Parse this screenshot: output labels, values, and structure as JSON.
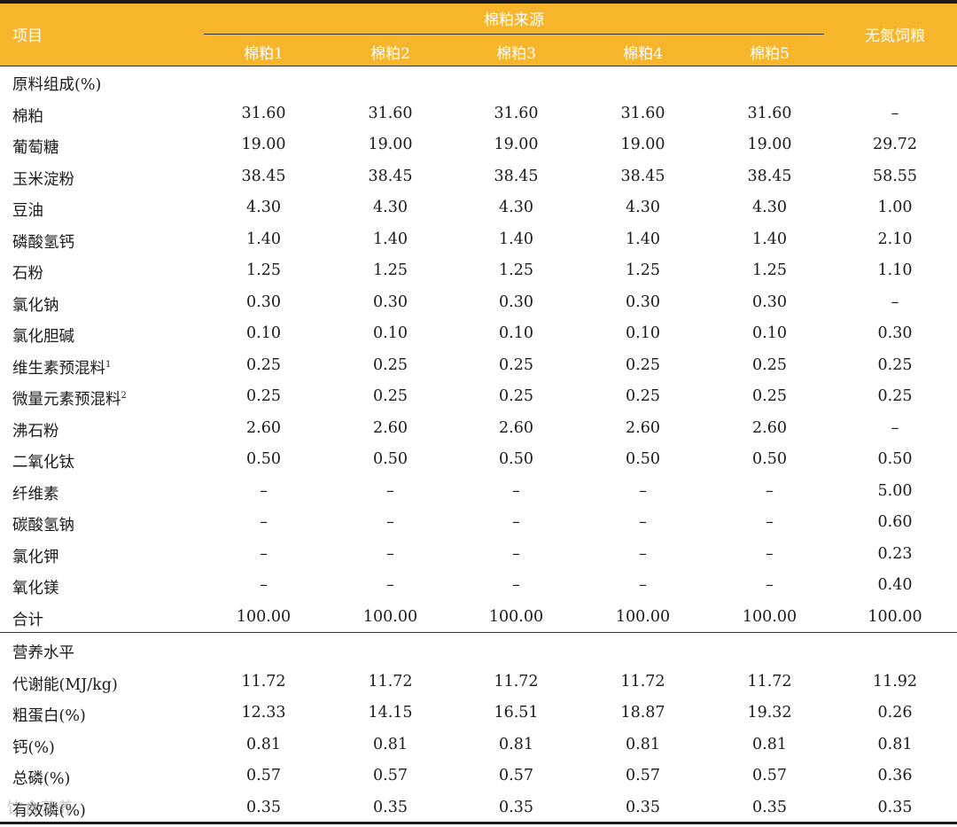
{
  "header": {
    "item": "项目",
    "group": "棉粕来源",
    "sub": [
      "棉粕1",
      "棉粕2",
      "棉粕3",
      "棉粕4",
      "棉粕5"
    ],
    "last": "无氮饲粮"
  },
  "rows": [
    {
      "label": "原料组成(%)",
      "sup": "",
      "values": [
        "",
        "",
        "",
        "",
        "",
        ""
      ]
    },
    {
      "label": "棉粕",
      "sup": "",
      "values": [
        "31.60",
        "31.60",
        "31.60",
        "31.60",
        "31.60",
        "–"
      ]
    },
    {
      "label": "葡萄糖",
      "sup": "",
      "values": [
        "19.00",
        "19.00",
        "19.00",
        "19.00",
        "19.00",
        "29.72"
      ]
    },
    {
      "label": "玉米淀粉",
      "sup": "",
      "values": [
        "38.45",
        "38.45",
        "38.45",
        "38.45",
        "38.45",
        "58.55"
      ]
    },
    {
      "label": "豆油",
      "sup": "",
      "values": [
        "4.30",
        "4.30",
        "4.30",
        "4.30",
        "4.30",
        "1.00"
      ]
    },
    {
      "label": "磷酸氢钙",
      "sup": "",
      "values": [
        "1.40",
        "1.40",
        "1.40",
        "1.40",
        "1.40",
        "2.10"
      ]
    },
    {
      "label": "石粉",
      "sup": "",
      "values": [
        "1.25",
        "1.25",
        "1.25",
        "1.25",
        "1.25",
        "1.10"
      ]
    },
    {
      "label": "氯化钠",
      "sup": "",
      "values": [
        "0.30",
        "0.30",
        "0.30",
        "0.30",
        "0.30",
        "–"
      ]
    },
    {
      "label": "氯化胆碱",
      "sup": "",
      "values": [
        "0.10",
        "0.10",
        "0.10",
        "0.10",
        "0.10",
        "0.30"
      ]
    },
    {
      "label": "维生素预混料",
      "sup": "1",
      "values": [
        "0.25",
        "0.25",
        "0.25",
        "0.25",
        "0.25",
        "0.25"
      ]
    },
    {
      "label": "微量元素预混料",
      "sup": "2",
      "values": [
        "0.25",
        "0.25",
        "0.25",
        "0.25",
        "0.25",
        "0.25"
      ]
    },
    {
      "label": "沸石粉",
      "sup": "",
      "values": [
        "2.60",
        "2.60",
        "2.60",
        "2.60",
        "2.60",
        "–"
      ]
    },
    {
      "label": "二氧化钛",
      "sup": "",
      "values": [
        "0.50",
        "0.50",
        "0.50",
        "0.50",
        "0.50",
        "0.50"
      ]
    },
    {
      "label": "纤维素",
      "sup": "",
      "values": [
        "–",
        "–",
        "–",
        "–",
        "–",
        "5.00"
      ]
    },
    {
      "label": "碳酸氢钠",
      "sup": "",
      "values": [
        "–",
        "–",
        "–",
        "–",
        "–",
        "0.60"
      ]
    },
    {
      "label": "氯化钾",
      "sup": "",
      "values": [
        "–",
        "–",
        "–",
        "–",
        "–",
        "0.23"
      ]
    },
    {
      "label": "氧化镁",
      "sup": "",
      "values": [
        "–",
        "–",
        "–",
        "–",
        "–",
        "0.40"
      ]
    },
    {
      "label": "合计",
      "sup": "",
      "values": [
        "100.00",
        "100.00",
        "100.00",
        "100.00",
        "100.00",
        "100.00"
      ]
    },
    {
      "label": "营养水平",
      "sup": "",
      "values": [
        "",
        "",
        "",
        "",
        "",
        ""
      ]
    },
    {
      "label": "代谢能(MJ/kg)",
      "sup": "",
      "values": [
        "11.72",
        "11.72",
        "11.72",
        "11.72",
        "11.72",
        "11.92"
      ]
    },
    {
      "label": "粗蛋白(%)",
      "sup": "",
      "values": [
        "12.33",
        "14.15",
        "16.51",
        "18.87",
        "19.32",
        "0.26"
      ]
    },
    {
      "label": "钙(%)",
      "sup": "",
      "values": [
        "0.81",
        "0.81",
        "0.81",
        "0.81",
        "0.81",
        "0.81"
      ]
    },
    {
      "label": "总磷(%)",
      "sup": "",
      "values": [
        "0.57",
        "0.57",
        "0.57",
        "0.57",
        "0.57",
        "0.36"
      ]
    },
    {
      "label": "有效磷(%)",
      "sup": "",
      "values": [
        "0.35",
        "0.35",
        "0.35",
        "0.35",
        "0.35",
        "0.35"
      ]
    }
  ],
  "watermark": "饮食营养",
  "colors": {
    "header_bg": "#f7b52c",
    "header_text": "#ffffff",
    "rule": "#1a1a1a"
  }
}
